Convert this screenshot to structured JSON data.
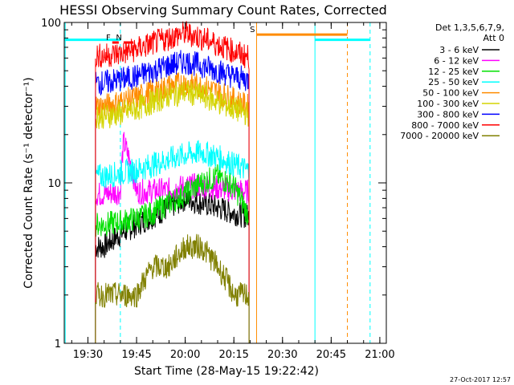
{
  "chart_data": {
    "type": "line",
    "title": "HESSI Observing Summary Count Rates, Corrected",
    "xlabel": "Start Time (28-May-15 19:22:42)",
    "ylabel": "Corrected Count Rate (s⁻¹ detector⁻¹)",
    "yscale": "log",
    "ylim": [
      1,
      100
    ],
    "xlim": [
      "19:22:42",
      "21:02:00"
    ],
    "x_ticks": [
      "19:30",
      "19:45",
      "20:00",
      "20:15",
      "20:30",
      "20:45",
      "21:00"
    ],
    "y_ticks": [
      "1",
      "10",
      "100"
    ],
    "x_tick_minutes": [
      450,
      1350,
      2250,
      3150,
      4050,
      4950,
      5850
    ],
    "legend_title": "Det 1,3,5,6,7,9,",
    "legend_subtitle": "Att 0",
    "legend_position": "right",
    "timestamp": "27-Oct-2017 12:57",
    "data_gap": {
      "start": "19:32:20",
      "end": "20:19:40"
    },
    "series": [
      {
        "name": "3 - 6 keV",
        "color": "#000000",
        "x": [
          "19:35",
          "19:40",
          "19:45",
          "19:50",
          "19:55",
          "20:00",
          "20:05",
          "20:10",
          "20:15",
          "20:19"
        ],
        "y": [
          4.0,
          4.8,
          5.5,
          6.2,
          7.0,
          8.0,
          7.5,
          7.0,
          6.5,
          6.2
        ]
      },
      {
        "name": "6 - 12 keV",
        "color": "#ff00ff",
        "x": [
          "19:35",
          "19:40",
          "19:41",
          "19:45",
          "19:50",
          "19:55",
          "20:00",
          "20:05",
          "20:10",
          "20:15",
          "20:19"
        ],
        "y": [
          8.5,
          8.8,
          18.0,
          8.8,
          8.9,
          9.0,
          9.5,
          9.6,
          9.3,
          9.0,
          8.8
        ]
      },
      {
        "name": "12 - 25 keV",
        "color": "#00e000",
        "x": [
          "19:35",
          "19:40",
          "19:45",
          "19:50",
          "19:55",
          "20:00",
          "20:05",
          "20:10",
          "20:15",
          "20:19"
        ],
        "y": [
          5.5,
          5.7,
          6.0,
          6.5,
          7.5,
          8.5,
          10.0,
          11.0,
          9.5,
          6.5
        ]
      },
      {
        "name": "25 - 50 keV",
        "color": "#00ffff",
        "x": [
          "19:35",
          "19:40",
          "19:45",
          "19:50",
          "19:55",
          "20:00",
          "20:05",
          "20:10",
          "20:15",
          "20:19"
        ],
        "y": [
          11.0,
          11.5,
          12.0,
          13.0,
          14.0,
          15.0,
          15.5,
          14.5,
          13.0,
          12.0
        ]
      },
      {
        "name": "50 - 100 keV",
        "color": "#ff8c00",
        "x": [
          "19:35",
          "19:40",
          "19:45",
          "19:50",
          "19:55",
          "20:00",
          "20:05",
          "20:10",
          "20:15",
          "20:19"
        ],
        "y": [
          30.0,
          32.0,
          34.0,
          37.0,
          40.0,
          42.0,
          40.0,
          37.0,
          33.0,
          30.0
        ]
      },
      {
        "name": "100 - 300 keV",
        "color": "#d4d400",
        "x": [
          "19:35",
          "19:40",
          "19:45",
          "19:50",
          "19:55",
          "20:00",
          "20:05",
          "20:10",
          "20:15",
          "20:19"
        ],
        "y": [
          26.0,
          27.0,
          29.0,
          32.0,
          35.0,
          37.0,
          35.0,
          32.0,
          29.0,
          27.0
        ]
      },
      {
        "name": "300 - 800 keV",
        "color": "#0000ff",
        "x": [
          "19:35",
          "19:40",
          "19:45",
          "19:50",
          "19:55",
          "20:00",
          "20:05",
          "20:10",
          "20:15",
          "20:19"
        ],
        "y": [
          42.0,
          44.0,
          46.0,
          50.0,
          54.0,
          57.0,
          54.0,
          50.0,
          46.0,
          44.0
        ]
      },
      {
        "name": "800 - 7000 keV",
        "color": "#ff0000",
        "x": [
          "19:35",
          "19:40",
          "19:45",
          "19:50",
          "19:55",
          "20:00",
          "20:05",
          "20:10",
          "20:15",
          "20:19"
        ],
        "y": [
          62.0,
          64.0,
          68.0,
          74.0,
          80.0,
          86.0,
          80.0,
          73.0,
          66.0,
          61.0
        ]
      },
      {
        "name": "7000 - 20000 keV",
        "color": "#808000",
        "x": [
          "19:35",
          "19:40",
          "19:45",
          "19:50",
          "19:55",
          "20:00",
          "20:05",
          "20:10",
          "20:15",
          "20:19"
        ],
        "y": [
          2.0,
          2.0,
          2.0,
          3.0,
          3.0,
          4.0,
          4.0,
          3.0,
          2.0,
          2.0
        ]
      }
    ],
    "annotations": [
      {
        "label": "F",
        "color": "#ff0000",
        "x_start": "19:37:30",
        "x_end": "19:39:30",
        "y": 75
      },
      {
        "label": "N",
        "color": "#ff0000",
        "x_start": "19:41:00",
        "x_end": "19:44:00",
        "y": 75
      },
      {
        "label": "S",
        "color": "#ff8c00",
        "x_start": "20:22:00",
        "x_end": "20:50:00",
        "y": 84
      }
    ],
    "reference_lines": [
      {
        "style": "solid",
        "color": "#00ffff",
        "x": "19:23:00"
      },
      {
        "style": "dashed",
        "color": "#00ffff",
        "x": "19:40:00"
      },
      {
        "style": "solid",
        "color": "#00ffff",
        "x": "20:40:00"
      },
      {
        "style": "dashed",
        "color": "#00ffff",
        "x": "20:57:00"
      },
      {
        "style": "solid",
        "color": "#ff8c00",
        "x": "20:22:00"
      },
      {
        "style": "dashed",
        "color": "#ff8c00",
        "x": "20:50:00"
      }
    ],
    "horizontal_bars": [
      {
        "color": "#00ffff",
        "x_start": "19:22:42",
        "x_end": "19:40:00",
        "y": 78
      },
      {
        "color": "#00ffff",
        "x_start": "20:40:00",
        "x_end": "20:57:00",
        "y": 78
      }
    ],
    "grid": false
  }
}
